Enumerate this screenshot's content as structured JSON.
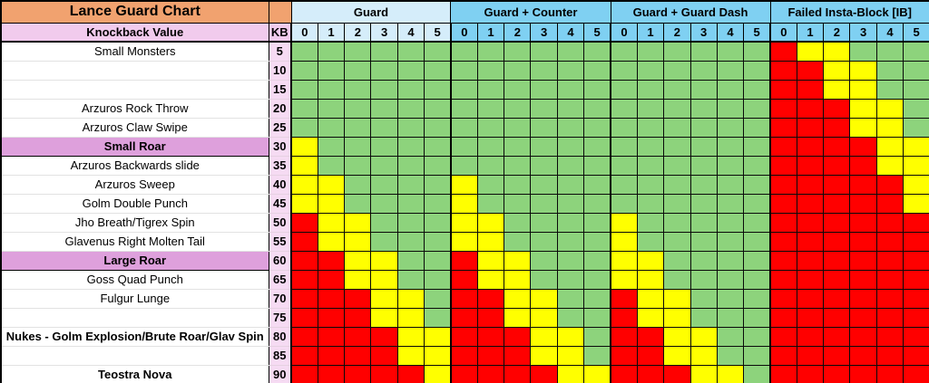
{
  "title": "Lance Guard Chart",
  "header": {
    "knockback_label": "Knockback Value",
    "kb_label": "KB"
  },
  "sections": [
    {
      "label": "Guard",
      "tone": "light",
      "levels": [
        "0",
        "1",
        "2",
        "3",
        "4",
        "5"
      ]
    },
    {
      "label": "Guard + Counter",
      "tone": "medium",
      "levels": [
        "0",
        "1",
        "2",
        "3",
        "4",
        "5"
      ]
    },
    {
      "label": "Guard + Guard Dash",
      "tone": "medium",
      "levels": [
        "0",
        "1",
        "2",
        "3",
        "4",
        "5"
      ]
    },
    {
      "label": "Failed Insta-Block [IB]",
      "tone": "medium",
      "levels": [
        "0",
        "1",
        "2",
        "3",
        "4",
        "5"
      ]
    }
  ],
  "rows": [
    {
      "name": "Small Monsters",
      "kb": "5",
      "style": "normal",
      "cells": "GGGGGGGGGGGGGGGGGGRYYGGG"
    },
    {
      "name": "",
      "kb": "10",
      "style": "normal",
      "cells": "GGGGGGGGGGGGGGGGGGRRYYGG"
    },
    {
      "name": "",
      "kb": "15",
      "style": "normal",
      "cells": "GGGGGGGGGGGGGGGGGGRRYYGG"
    },
    {
      "name": "Arzuros Rock Throw",
      "kb": "20",
      "style": "normal",
      "cells": "GGGGGGGGGGGGGGGGGGRRRYYG"
    },
    {
      "name": "Arzuros Claw Swipe",
      "kb": "25",
      "style": "normal",
      "cells": "GGGGGGGGGGGGGGGGGGRRRYYG"
    },
    {
      "name": "Small Roar",
      "kb": "30",
      "style": "highlight",
      "cells": "YGGGGGGGGGGGGGGGGGRRRRYY"
    },
    {
      "name": "Arzuros Backwards slide",
      "kb": "35",
      "style": "normal",
      "cells": "YGGGGGGGGGGGGGGGGGRRRRYY"
    },
    {
      "name": "Arzuros Sweep",
      "kb": "40",
      "style": "normal",
      "cells": "YYGGGGYGGGGGGGGGGGRRRRRY"
    },
    {
      "name": "Golm Double Punch",
      "kb": "45",
      "style": "normal",
      "cells": "YYGGGGYGGGGGGGGGGGRRRRRY"
    },
    {
      "name": "Jho Breath/Tigrex Spin",
      "kb": "50",
      "style": "normal",
      "cells": "RYYGGGYYGGGGYGGGGGRRRRRR"
    },
    {
      "name": "Glavenus Right Molten Tail",
      "kb": "55",
      "style": "normal",
      "cells": "RYYGGGYYGGGGYGGGGGRRRRRR"
    },
    {
      "name": "Large Roar",
      "kb": "60",
      "style": "highlight",
      "cells": "RRYYGGRYYGGGYYGGGGRRRRRR"
    },
    {
      "name": "Goss Quad Punch",
      "kb": "65",
      "style": "normal",
      "cells": "RRYYGGRYYGGGYYGGGGRRRRRR"
    },
    {
      "name": "Fulgur Lunge",
      "kb": "70",
      "style": "normal",
      "cells": "RRRYYGRRYYGGRYYGGGRRRRRR"
    },
    {
      "name": "",
      "kb": "75",
      "style": "normal",
      "cells": "RRRYYGRRYYGGRYYGGGRRRRRR"
    },
    {
      "name": "Nukes - Golm Explosion/Brute Roar/Glav Spin",
      "kb": "80",
      "style": "bold",
      "cells": "RRRRYYRRRYYGRRYYGGRRRRRR"
    },
    {
      "name": "",
      "kb": "85",
      "style": "normal",
      "cells": "RRRRYYRRRYYGRRYYGGRRRRRR"
    },
    {
      "name": "Teostra Nova",
      "kb": "90",
      "style": "bold",
      "cells": "RRRRRYRRRRYYRRRYYGRRRRRR"
    }
  ],
  "colors": {
    "orange": "#F1A26F",
    "pink_header": "#F1CBED",
    "pink_light": "#F6DBF3",
    "orchid": "#DEA0DC",
    "blue_light": "#D5EDFA",
    "blue_medium": "#7FD0F2",
    "green": "#8DD37C",
    "yellow": "#FFFF00",
    "red": "#FF0000"
  },
  "chart_data": {
    "type": "heatmap",
    "title": "Lance Guard Chart",
    "column_groups": [
      "Guard",
      "Guard + Counter",
      "Guard + Guard Dash",
      "Failed Insta-Block [IB]"
    ],
    "guard_levels_per_group": [
      0,
      1,
      2,
      3,
      4,
      5
    ],
    "cell_order": "24 cells per row: Guard 0-5, Guard + Counter 0-5, Guard + Guard Dash 0-5, Failed Insta-Block [IB] 0-5",
    "color_key": {
      "G": "green",
      "Y": "yellow",
      "R": "red"
    },
    "kb_values": [
      5,
      10,
      15,
      20,
      25,
      30,
      35,
      40,
      45,
      50,
      55,
      60,
      65,
      70,
      75,
      80,
      85,
      90
    ],
    "row_labels": [
      "Small Monsters",
      "",
      "",
      "Arzuros Rock Throw",
      "Arzuros Claw Swipe",
      "Small Roar",
      "Arzuros Backwards slide",
      "Arzuros Sweep",
      "Golm Double Punch",
      "Jho Breath/Tigrex Spin",
      "Glavenus Right Molten Tail",
      "Large Roar",
      "Goss Quad Punch",
      "Fulgur Lunge",
      "",
      "Nukes - Golm Explosion/Brute Roar/Glav Spin",
      "",
      "Teostra Nova"
    ],
    "matrix": [
      "GGGGGGGGGGGGGGGGGGRYYGGG",
      "GGGGGGGGGGGGGGGGGGRRYYGG",
      "GGGGGGGGGGGGGGGGGGRRYYGG",
      "GGGGGGGGGGGGGGGGGGRRRYYG",
      "GGGGGGGGGGGGGGGGGGRRRYYG",
      "YGGGGGGGGGGGGGGGGGRRRRYY",
      "YGGGGGGGGGGGGGGGGGRRRRYY",
      "YYGGGGYGGGGGGGGGGGRRRRRY",
      "YYGGGGYGGGGGGGGGGGRRRRRY",
      "RYYGGGYYGGGGYGGGGGRRRRRR",
      "RYYGGGYYGGGGYGGGGGRRRRRR",
      "RRYYGGRYYGGGYYGGGGRRRRRR",
      "RRYYGGRYYGGGYYGGGGRRRRRR",
      "RRRYYGRRYYGGRYYGGGRRRRRR",
      "RRRYYGRRYYGGRYYGGGRRRRRR",
      "RRRRYYRRRYYGRRYYGGRRRRRR",
      "RRRRYYRRRYYGRRYYGGRRRRRR",
      "RRRRRYRRRRYYRRRYYGRRRRRR"
    ]
  }
}
